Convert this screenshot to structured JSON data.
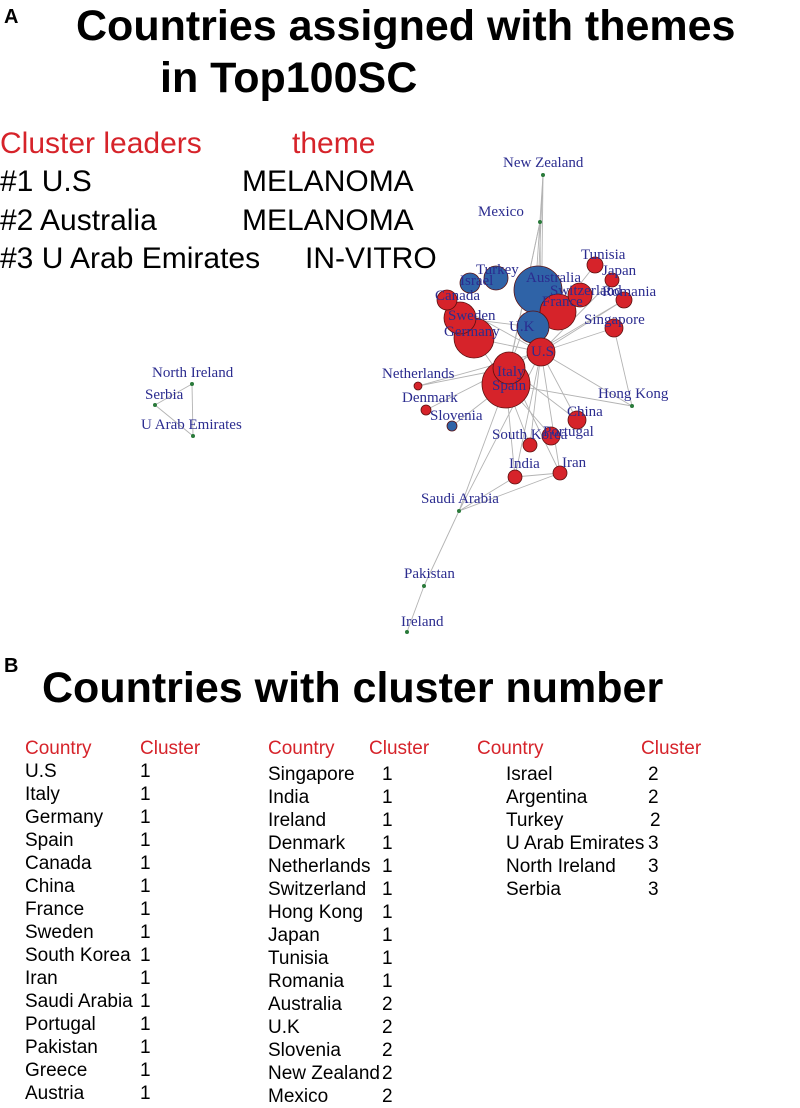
{
  "panel_a": {
    "label": "A",
    "title_line1": "Countries assigned with themes",
    "title_line2": "in Top100SC",
    "legend": {
      "leaders_header": "Cluster leaders",
      "theme_header": "theme",
      "rows": [
        {
          "leader": "#1 U.S",
          "theme": "MELANOMA"
        },
        {
          "leader": "#2 Australia",
          "theme": "MELANOMA"
        },
        {
          "leader": "#3 U Arab Emirates",
          "theme": "IN-VITRO"
        }
      ]
    },
    "network": {
      "colors": {
        "cluster1": "#d6232a",
        "cluster2": "#2f63a7",
        "small": "#2a7a3a",
        "edge": "#b3b3b3",
        "label": "#2b2c8f"
      },
      "nodes": [
        {
          "label": "New Zealand",
          "cluster": 2
        },
        {
          "label": "Mexico",
          "cluster": 2
        },
        {
          "label": "Tunisia",
          "cluster": 1
        },
        {
          "label": "Japan",
          "cluster": 1
        },
        {
          "label": "Romania",
          "cluster": 1
        },
        {
          "label": "Singapore",
          "cluster": 1
        },
        {
          "label": "Australia",
          "cluster": 2
        },
        {
          "label": "Israel",
          "cluster": 2
        },
        {
          "label": "Turkey",
          "cluster": 2
        },
        {
          "label": "Canada",
          "cluster": 1
        },
        {
          "label": "Sweden",
          "cluster": 1
        },
        {
          "label": "Germany",
          "cluster": 1
        },
        {
          "label": "U.K",
          "cluster": 2
        },
        {
          "label": "France",
          "cluster": 1
        },
        {
          "label": "Switzerland",
          "cluster": 1
        },
        {
          "label": "U.S",
          "cluster": 1
        },
        {
          "label": "Italy",
          "cluster": 1
        },
        {
          "label": "Spain",
          "cluster": 1
        },
        {
          "label": "Netherlands",
          "cluster": 1
        },
        {
          "label": "Denmark",
          "cluster": 1
        },
        {
          "label": "Slovenia",
          "cluster": 2
        },
        {
          "label": "Hong Kong",
          "cluster": 1
        },
        {
          "label": "China",
          "cluster": 1
        },
        {
          "label": "South Korea",
          "cluster": 1
        },
        {
          "label": "Portugal",
          "cluster": 1
        },
        {
          "label": "India",
          "cluster": 1
        },
        {
          "label": "Iran",
          "cluster": 1
        },
        {
          "label": "Saudi Arabia",
          "cluster": 1
        },
        {
          "label": "Pakistan",
          "cluster": 1
        },
        {
          "label": "Ireland",
          "cluster": 1
        },
        {
          "label": "North Ireland",
          "cluster": 3
        },
        {
          "label": "Serbia",
          "cluster": 3
        },
        {
          "label": "U Arab Emirates",
          "cluster": 3
        }
      ]
    }
  },
  "panel_b": {
    "label": "B",
    "title": "Countries with cluster number",
    "tables": [
      {
        "country_header": "Country",
        "cluster_header": "Cluster",
        "rows": [
          {
            "country": "U.S",
            "cluster": "1"
          },
          {
            "country": "Italy",
            "cluster": "1"
          },
          {
            "country": "Germany",
            "cluster": "1"
          },
          {
            "country": "Spain",
            "cluster": "1"
          },
          {
            "country": "Canada",
            "cluster": "1"
          },
          {
            "country": "China",
            "cluster": "1"
          },
          {
            "country": "France",
            "cluster": "1"
          },
          {
            "country": "Sweden",
            "cluster": "1"
          },
          {
            "country": "South Korea",
            "cluster": "1"
          },
          {
            "country": "Iran",
            "cluster": "1"
          },
          {
            "country": "Saudi Arabia",
            "cluster": "1"
          },
          {
            "country": "Portugal",
            "cluster": "1"
          },
          {
            "country": "Pakistan",
            "cluster": "1"
          },
          {
            "country": "Greece",
            "cluster": "1"
          },
          {
            "country": "Austria",
            "cluster": "1"
          }
        ]
      },
      {
        "country_header": "Country",
        "cluster_header": "Cluster",
        "rows": [
          {
            "country": "Singapore",
            "cluster": "1"
          },
          {
            "country": "India",
            "cluster": "1"
          },
          {
            "country": "Ireland",
            "cluster": "1"
          },
          {
            "country": "Denmark",
            "cluster": "1"
          },
          {
            "country": "Netherlands",
            "cluster": "1"
          },
          {
            "country": "Switzerland",
            "cluster": "1"
          },
          {
            "country": "Hong Kong",
            "cluster": "1"
          },
          {
            "country": "Japan",
            "cluster": "1"
          },
          {
            "country": "Tunisia",
            "cluster": "1"
          },
          {
            "country": "Romania",
            "cluster": "1"
          },
          {
            "country": "Australia",
            "cluster": "2"
          },
          {
            "country": "U.K",
            "cluster": "2"
          },
          {
            "country": "Slovenia",
            "cluster": "2"
          },
          {
            "country": "New Zealand",
            "cluster": "2"
          },
          {
            "country": "Mexico",
            "cluster": "2"
          }
        ]
      },
      {
        "country_header": "Country",
        "cluster_header": "Cluster",
        "rows": [
          {
            "country": "Israel",
            "cluster": "2"
          },
          {
            "country": "Argentina",
            "cluster": "2"
          },
          {
            "country": "Turkey",
            "cluster": "2"
          },
          {
            "country": "U Arab Emirates",
            "cluster": "3"
          },
          {
            "country": "North Ireland",
            "cluster": "3"
          },
          {
            "country": "Serbia",
            "cluster": "3"
          }
        ]
      }
    ]
  }
}
